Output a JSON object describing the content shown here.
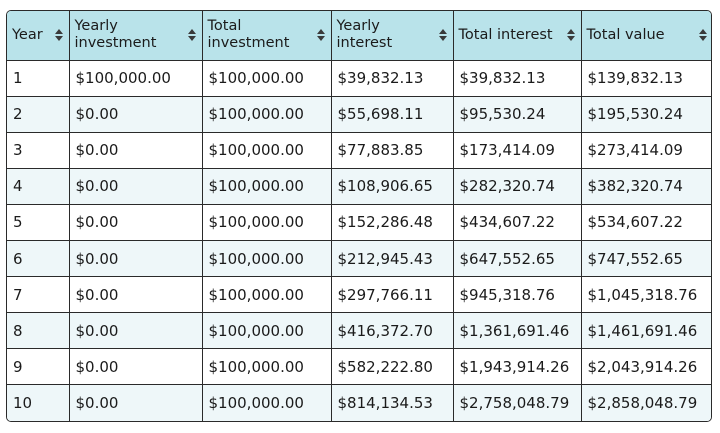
{
  "table": {
    "columns": [
      {
        "label": "Year"
      },
      {
        "label": "Yearly investment"
      },
      {
        "label": "Total investment"
      },
      {
        "label": "Yearly interest"
      },
      {
        "label": "Total interest"
      },
      {
        "label": "Total value"
      }
    ],
    "rows": [
      [
        "1",
        "$100,000.00",
        "$100,000.00",
        "$39,832.13",
        "$39,832.13",
        "$139,832.13"
      ],
      [
        "2",
        "$0.00",
        "$100,000.00",
        "$55,698.11",
        "$95,530.24",
        "$195,530.24"
      ],
      [
        "3",
        "$0.00",
        "$100,000.00",
        "$77,883.85",
        "$173,414.09",
        "$273,414.09"
      ],
      [
        "4",
        "$0.00",
        "$100,000.00",
        "$108,906.65",
        "$282,320.74",
        "$382,320.74"
      ],
      [
        "5",
        "$0.00",
        "$100,000.00",
        "$152,286.48",
        "$434,607.22",
        "$534,607.22"
      ],
      [
        "6",
        "$0.00",
        "$100,000.00",
        "$212,945.43",
        "$647,552.65",
        "$747,552.65"
      ],
      [
        "7",
        "$0.00",
        "$100,000.00",
        "$297,766.11",
        "$945,318.76",
        "$1,045,318.76"
      ],
      [
        "8",
        "$0.00",
        "$100,000.00",
        "$416,372.70",
        "$1,361,691.46",
        "$1,461,691.46"
      ],
      [
        "9",
        "$0.00",
        "$100,000.00",
        "$582,222.80",
        "$1,943,914.26",
        "$2,043,914.26"
      ],
      [
        "10",
        "$0.00",
        "$100,000.00",
        "$814,134.53",
        "$2,758,048.79",
        "$2,858,048.79"
      ]
    ]
  },
  "colors": {
    "header_background": "#b9e3ea",
    "row_alt_background": "#eef7f9",
    "border": "#2a2a2a"
  },
  "icons": {
    "sort": "sort-icon"
  }
}
